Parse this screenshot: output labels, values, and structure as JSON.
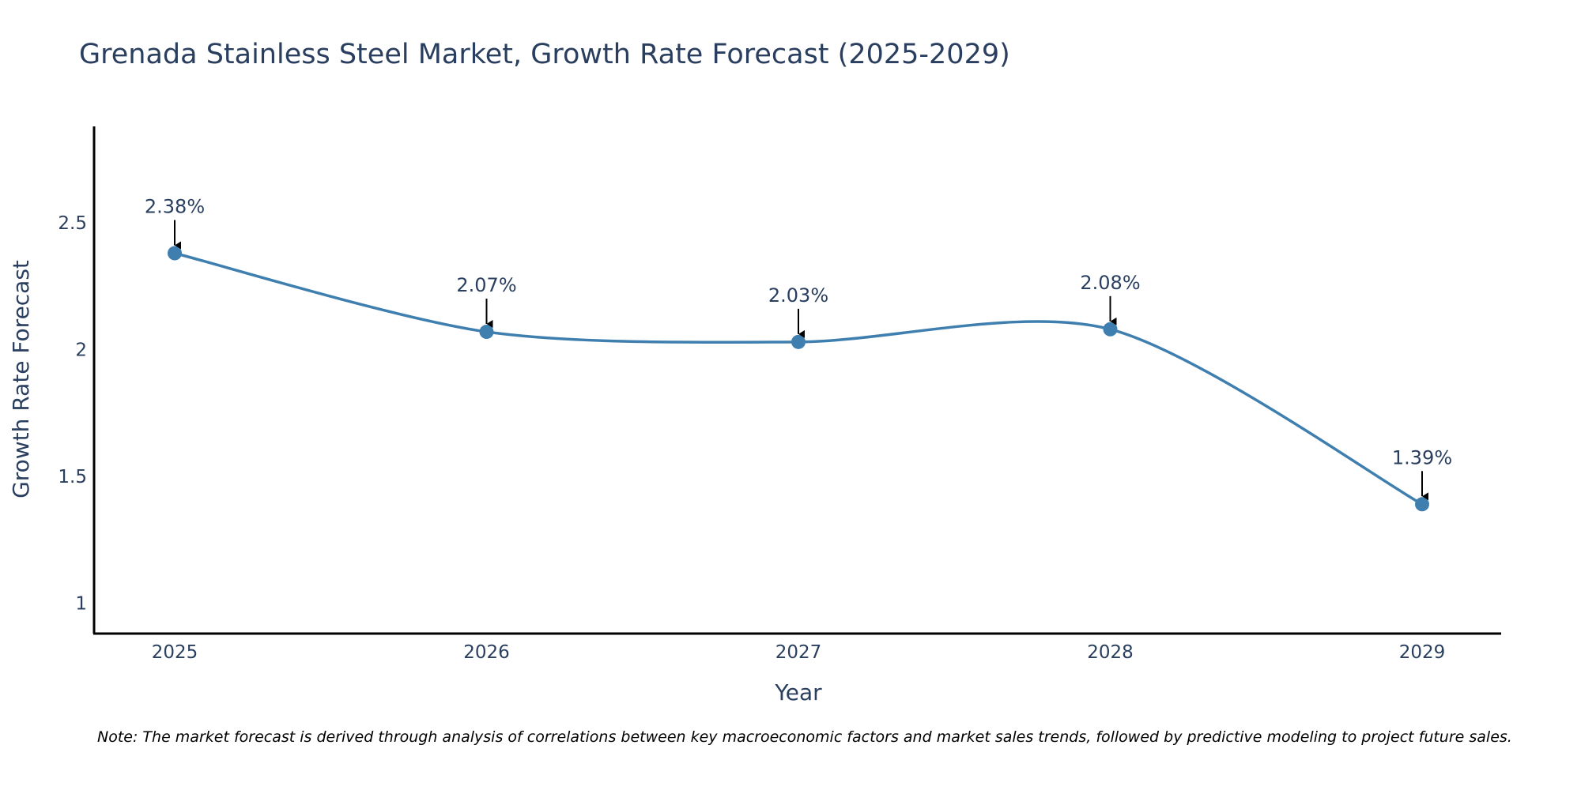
{
  "chart_data": {
    "type": "line",
    "title": "Grenada Stainless Steel Market, Growth Rate Forecast (2025-2029)",
    "xlabel": "Year",
    "ylabel": "Growth Rate Forecast",
    "categories": [
      "2025",
      "2026",
      "2027",
      "2028",
      "2029"
    ],
    "values": [
      2.38,
      2.07,
      2.03,
      2.08,
      1.39
    ],
    "data_labels": [
      "2.38%",
      "2.07%",
      "2.03%",
      "2.08%",
      "1.39%"
    ],
    "y_ticks": [
      1,
      1.5,
      2,
      2.5
    ],
    "y_tick_labels": [
      "1",
      "1.5",
      "2",
      "2.5"
    ],
    "ylim": [
      0.88,
      2.88
    ],
    "grid": false,
    "line_color": "#3f7faf",
    "note": "Note: The market forecast is derived through analysis of correlations between key macroeconomic factors and market sales trends, followed by predictive modeling to project future sales."
  }
}
